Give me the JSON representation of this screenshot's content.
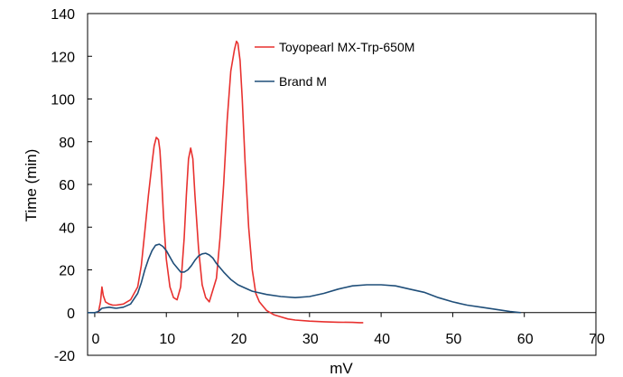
{
  "chart_data": {
    "type": "line",
    "title": "",
    "xlabel": "mV",
    "ylabel": "Time (min)",
    "xlim": [
      -1,
      70
    ],
    "ylim": [
      -20,
      140
    ],
    "x_ticks": [
      0,
      10,
      20,
      30,
      40,
      50,
      60,
      70
    ],
    "x_tick_labels": [
      "0",
      "10",
      "20",
      "30",
      "40",
      "50",
      "60",
      "70"
    ],
    "y_ticks": [
      -20,
      0,
      20,
      40,
      60,
      80,
      100,
      120,
      140
    ],
    "y_tick_labels": [
      "-20",
      "0",
      "20",
      "40",
      "60",
      "80",
      "100",
      "120",
      "140"
    ],
    "grid": false,
    "legend_position": "top-right",
    "series": [
      {
        "name": "Toyopearl MX-Trp-650M",
        "color": "#e8312f",
        "x": [
          0.5,
          0.8,
          1.0,
          1.2,
          1.5,
          2.0,
          2.5,
          3.0,
          4.0,
          5.0,
          6.0,
          6.5,
          7.0,
          7.5,
          8.0,
          8.3,
          8.6,
          8.9,
          9.1,
          9.3,
          9.6,
          10.0,
          10.5,
          11.0,
          11.5,
          12.0,
          12.5,
          12.8,
          13.1,
          13.4,
          13.7,
          14.0,
          14.5,
          15.0,
          15.5,
          16.0,
          17.0,
          17.5,
          18.0,
          18.5,
          19.0,
          19.5,
          19.8,
          20.0,
          20.3,
          20.6,
          21.0,
          21.5,
          22.0,
          22.5,
          23.0,
          23.5,
          24.0,
          25.0,
          26.0,
          27.0,
          28.0,
          30.0,
          32.0,
          34.0,
          36.0,
          37.0,
          37.5
        ],
        "y": [
          0,
          5,
          12,
          8,
          5,
          4,
          3.5,
          3.5,
          4,
          6,
          12,
          22,
          38,
          55,
          70,
          78,
          82,
          81,
          76,
          65,
          45,
          25,
          12,
          7,
          6,
          12,
          35,
          55,
          72,
          77,
          72,
          55,
          30,
          13,
          7,
          5,
          16,
          35,
          60,
          90,
          113,
          123,
          127,
          126,
          118,
          100,
          70,
          40,
          20,
          9,
          5,
          3,
          1,
          -1,
          -2,
          -3,
          -3.5,
          -4,
          -4.3,
          -4.5,
          -4.6,
          -4.7,
          -4.7
        ]
      },
      {
        "name": "Brand M",
        "color": "#1f4e79",
        "x": [
          -1,
          0,
          0.5,
          1,
          2,
          3,
          4,
          5,
          6,
          6.5,
          7,
          7.5,
          8,
          8.5,
          9,
          9.5,
          10,
          10.5,
          11,
          12,
          12.5,
          13,
          13.5,
          14,
          14.5,
          15,
          15.5,
          16,
          16.5,
          17,
          18,
          19,
          20,
          21,
          22,
          24,
          26,
          28,
          30,
          32,
          34,
          36,
          38,
          40,
          42,
          44,
          46,
          48,
          50,
          52,
          54,
          56,
          58,
          59.5
        ],
        "y": [
          0,
          0,
          0.5,
          2,
          2.5,
          2,
          2.5,
          4,
          9,
          14,
          20,
          25,
          29,
          31.5,
          32,
          31,
          29,
          26,
          23,
          19,
          19,
          20,
          22,
          24.5,
          26.5,
          27.5,
          27.8,
          27,
          25.5,
          23,
          19,
          15.5,
          13,
          11.5,
          10,
          8.5,
          7.5,
          7,
          7.5,
          9,
          11,
          12.5,
          13,
          13,
          12.5,
          11,
          9.5,
          7,
          5,
          3.5,
          2.5,
          1.5,
          0.5,
          0
        ]
      }
    ]
  }
}
